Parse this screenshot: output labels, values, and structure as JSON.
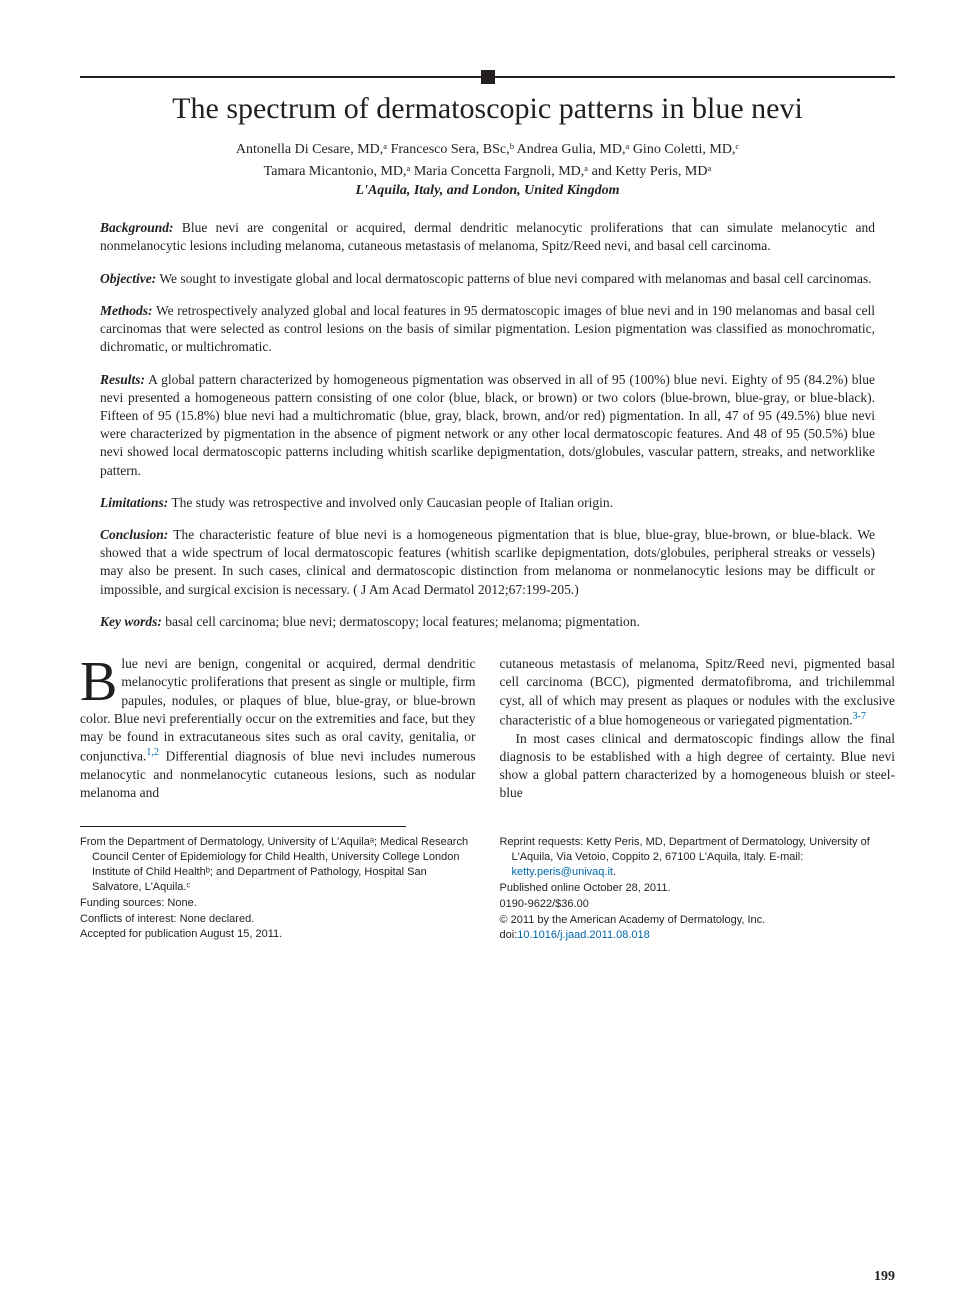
{
  "title": "The spectrum of dermatoscopic patterns in blue nevi",
  "authors_line1": "Antonella Di Cesare, MD,ᵃ Francesco Sera, BSc,ᵇ Andrea Gulia, MD,ᵃ Gino Coletti, MD,ᶜ",
  "authors_line2": "Tamara Micantonio, MD,ᵃ Maria Concetta Fargnoli, MD,ᵃ and Ketty Peris, MDᵃ",
  "locations": "L'Aquila, Italy, and London, United Kingdom",
  "abstract": {
    "background": {
      "label": "Background:",
      "text": " Blue nevi are congenital or acquired, dermal dendritic melanocytic proliferations that can simulate melanocytic and nonmelanocytic lesions including melanoma, cutaneous metastasis of melanoma, Spitz/Reed nevi, and basal cell carcinoma."
    },
    "objective": {
      "label": "Objective:",
      "text": " We sought to investigate global and local dermatoscopic patterns of blue nevi compared with melanomas and basal cell carcinomas."
    },
    "methods": {
      "label": "Methods:",
      "text": " We retrospectively analyzed global and local features in 95 dermatoscopic images of blue nevi and in 190 melanomas and basal cell carcinomas that were selected as control lesions on the basis of similar pigmentation. Lesion pigmentation was classified as monochromatic, dichromatic, or multichromatic."
    },
    "results": {
      "label": "Results:",
      "text": " A global pattern characterized by homogeneous pigmentation was observed in all of 95 (100%) blue nevi. Eighty of 95 (84.2%) blue nevi presented a homogeneous pattern consisting of one color (blue, black, or brown) or two colors (blue-brown, blue-gray, or blue-black). Fifteen of 95 (15.8%) blue nevi had a multichromatic (blue, gray, black, brown, and/or red) pigmentation. In all, 47 of 95 (49.5%) blue nevi were characterized by pigmentation in the absence of pigment network or any other local dermatoscopic features. And 48 of 95 (50.5%) blue nevi showed local dermatoscopic patterns including whitish scarlike depigmentation, dots/globules, vascular pattern, streaks, and networklike pattern."
    },
    "limitations": {
      "label": "Limitations:",
      "text": " The study was retrospective and involved only Caucasian people of Italian origin."
    },
    "conclusion": {
      "label": "Conclusion:",
      "text": " The characteristic feature of blue nevi is a homogeneous pigmentation that is blue, blue-gray, blue-brown, or blue-black. We showed that a wide spectrum of local dermatoscopic features (whitish scarlike depigmentation, dots/globules, peripheral streaks or vessels) may also be present. In such cases, clinical and dermatoscopic distinction from melanoma or nonmelanocytic lesions may be difficult or impossible, and surgical excision is necessary. ( J Am Acad Dermatol 2012;67:199-205.)"
    },
    "keywords": {
      "label": "Key words:",
      "text": " basal cell carcinoma; blue nevi; dermatoscopy; local features; melanoma; pigmentation."
    }
  },
  "body": {
    "dropcap": "B",
    "col1_p1": "lue nevi are benign, congenital or acquired, dermal dendritic melanocytic proliferations that present as single or multiple, firm papules, nodules, or plaques of blue, blue-gray, or blue-brown color. Blue nevi preferentially occur on the extremities and face, but they may be found in extracutaneous sites such as oral cavity, genitalia, or conjunctiva.",
    "ref1": "1,2",
    "col1_p1b": " Differential diagnosis of blue nevi includes numerous melanocytic and nonmelanocytic cutaneous lesions, such as nodular melanoma and",
    "col2_p1": "cutaneous metastasis of melanoma, Spitz/Reed nevi, pigmented basal cell carcinoma (BCC), pigmented dermatofibroma, and trichilemmal cyst, all of which may present as plaques or nodules with the exclusive characteristic of a blue homogeneous or variegated pigmentation.",
    "ref2": "3-7",
    "col2_p2": "In most cases clinical and dermatoscopic findings allow the final diagnosis to be established with a high degree of certainty. Blue nevi show a global pattern characterized by a homogeneous bluish or steel-blue"
  },
  "footer": {
    "left": {
      "affil": "From the Department of Dermatology, University of L'Aquilaᵃ; Medical Research Council Center of Epidemiology for Child Health, University College London Institute of Child Healthᵇ; and Department of Pathology, Hospital San Salvatore, L'Aquila.ᶜ",
      "funding": "Funding sources: None.",
      "conflicts": "Conflicts of interest: None declared.",
      "accepted": "Accepted for publication August 15, 2011."
    },
    "right": {
      "reprint": "Reprint requests: Ketty Peris, MD, Department of Dermatology, University of L'Aquila, Via Vetoio, Coppito 2, 67100 L'Aquila, Italy. E-mail: ",
      "email": "ketty.peris@univaq.it",
      "period": ".",
      "published": "Published online October 28, 2011.",
      "issn": "0190-9622/$36.00",
      "copyright": "© 2011 by the American Academy of Dermatology, Inc.",
      "doi_prefix": "doi:",
      "doi": "10.1016/j.jaad.2011.08.018"
    }
  },
  "page_number": "199",
  "colors": {
    "text": "#231f20",
    "link": "#0066aa",
    "background": "#ffffff"
  }
}
